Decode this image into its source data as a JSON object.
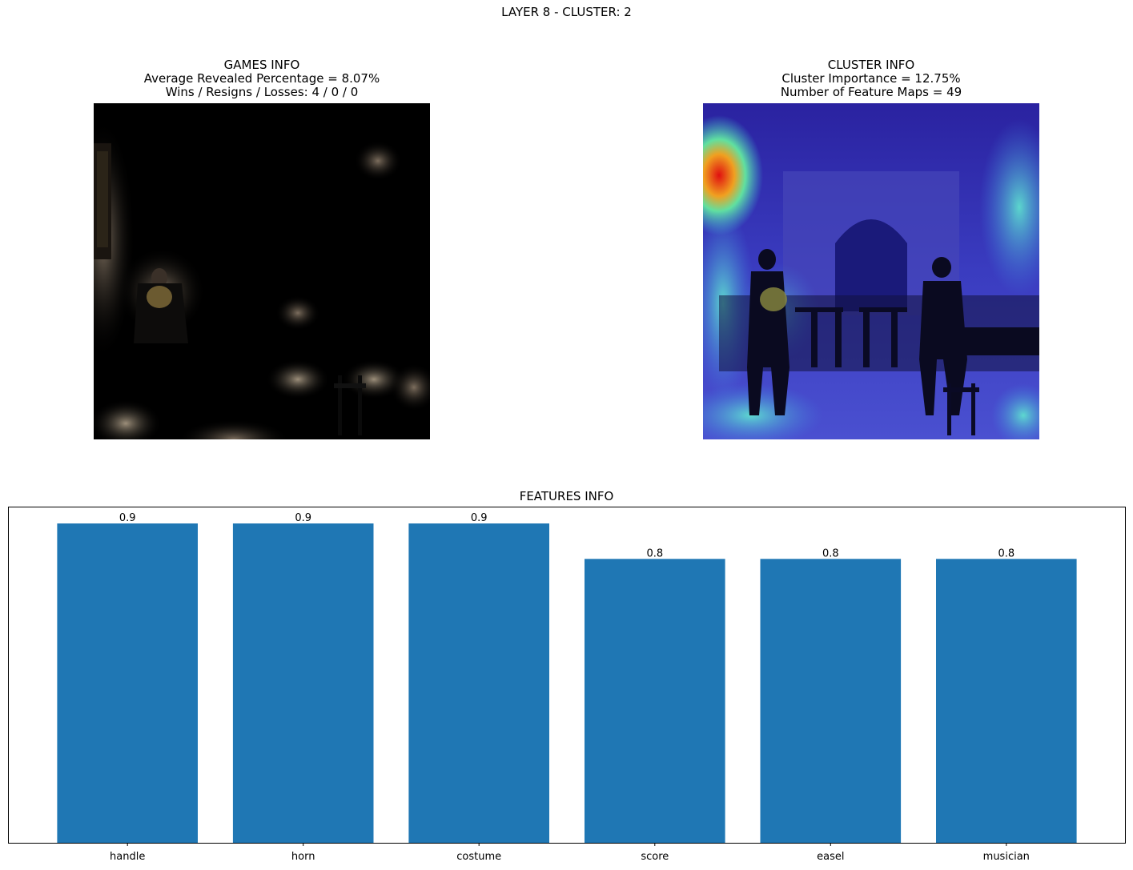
{
  "suptitle": "LAYER 8 - CLUSTER: 2",
  "games": {
    "title_lines": [
      "GAMES INFO",
      "Average Revealed Percentage = 8.07%",
      "Wins / Resigns / Losses: 4 / 0 / 0"
    ],
    "image": "masked concert photo, mostly black with small revealed patches"
  },
  "cluster": {
    "title_lines": [
      "CLUSTER INFO",
      "Cluster Importance = 12.75%",
      "Number of Feature Maps = 49"
    ],
    "image": "concert hall photo with blue/cyan heatmap overlay, red hotspot at top-left"
  },
  "chart_data": {
    "type": "bar",
    "title": "FEATURES INFO",
    "categories": [
      "handle",
      "horn",
      "costume",
      "score",
      "easel",
      "musician"
    ],
    "values": [
      0.9,
      0.9,
      0.9,
      0.8,
      0.8,
      0.8
    ],
    "data_labels": [
      "0.9",
      "0.9",
      "0.9",
      "0.8",
      "0.8",
      "0.8"
    ],
    "ylim": [
      0,
      0.945
    ],
    "y_axis_visible": false,
    "bar_color": "#1f77b4"
  }
}
